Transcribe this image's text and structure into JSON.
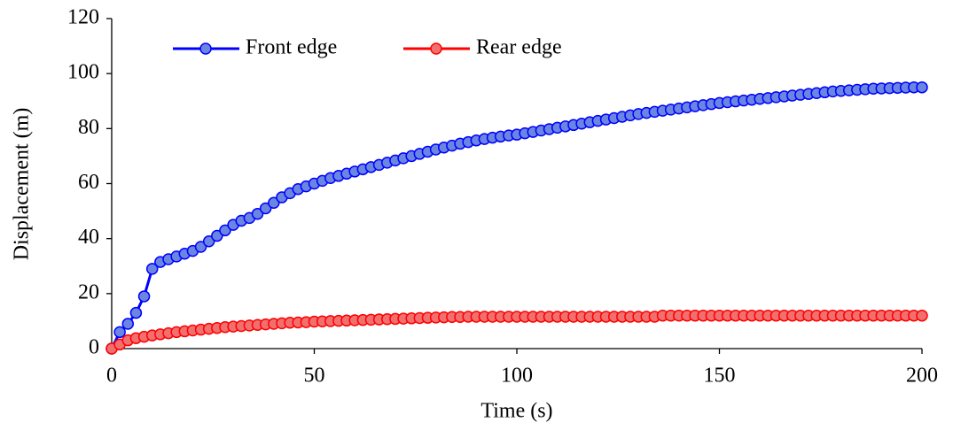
{
  "chart_data": {
    "type": "line",
    "xlabel": "Time (s)",
    "ylabel": "Displacement (m)",
    "xlim": [
      0,
      200
    ],
    "xticks": [
      0,
      50,
      100,
      150,
      200
    ],
    "ylim": [
      0,
      120
    ],
    "yticks": [
      0,
      20,
      40,
      60,
      80,
      100,
      120
    ],
    "legend": "top-left",
    "grid": false,
    "x": [
      0,
      2,
      4,
      6,
      8,
      10,
      12,
      14,
      16,
      18,
      20,
      22,
      24,
      26,
      28,
      30,
      32,
      34,
      36,
      38,
      40,
      42,
      44,
      46,
      48,
      50,
      52,
      54,
      56,
      58,
      60,
      62,
      64,
      66,
      68,
      70,
      72,
      74,
      76,
      78,
      80,
      82,
      84,
      86,
      88,
      90,
      92,
      94,
      96,
      98,
      100,
      102,
      104,
      106,
      108,
      110,
      112,
      114,
      116,
      118,
      120,
      122,
      124,
      126,
      128,
      130,
      132,
      134,
      136,
      138,
      140,
      142,
      144,
      146,
      148,
      150,
      152,
      154,
      156,
      158,
      160,
      162,
      164,
      166,
      168,
      170,
      172,
      174,
      176,
      178,
      180,
      182,
      184,
      186,
      188,
      190,
      192,
      194,
      196,
      198,
      200
    ],
    "series": [
      {
        "name": "Front edge",
        "color": "#0000ff",
        "marker_color": "#6a86e0",
        "values": [
          0,
          6,
          9,
          13,
          19,
          29,
          31.5,
          32.5,
          33.5,
          34.5,
          35.5,
          37,
          39,
          41,
          43,
          45,
          46.5,
          47.5,
          49,
          51,
          53,
          55,
          56.5,
          58,
          59,
          60,
          61,
          62,
          62.8,
          63.6,
          64.4,
          65.2,
          66,
          66.8,
          67.6,
          68.4,
          69.2,
          70,
          70.8,
          71.6,
          72.4,
          73.1,
          73.8,
          74.5,
          75.1,
          75.7,
          76.2,
          76.7,
          77.1,
          77.5,
          77.8,
          78.3,
          78.8,
          79.3,
          79.8,
          80.3,
          80.8,
          81.3,
          81.8,
          82.3,
          82.8,
          83.3,
          83.8,
          84.3,
          84.8,
          85.3,
          85.7,
          86.1,
          86.5,
          86.9,
          87.3,
          87.7,
          88.1,
          88.5,
          88.9,
          89.3,
          89.6,
          89.9,
          90.2,
          90.5,
          90.8,
          91.1,
          91.4,
          91.7,
          92,
          92.3,
          92.6,
          92.9,
          93.2,
          93.5,
          93.7,
          93.9,
          94.1,
          94.3,
          94.5,
          94.6,
          94.7,
          94.8,
          94.9,
          95,
          95
        ]
      },
      {
        "name": "Rear edge",
        "color": "#ff0000",
        "marker_color": "#f07070",
        "values": [
          0,
          1.5,
          3,
          3.8,
          4.3,
          4.8,
          5.2,
          5.6,
          6,
          6.3,
          6.6,
          6.9,
          7.2,
          7.5,
          7.8,
          8,
          8.2,
          8.4,
          8.6,
          8.8,
          9,
          9.2,
          9.4,
          9.5,
          9.6,
          9.8,
          9.9,
          10,
          10.1,
          10.2,
          10.3,
          10.4,
          10.5,
          10.6,
          10.7,
          10.8,
          10.9,
          11,
          11.1,
          11.2,
          11.3,
          11.4,
          11.5,
          11.5,
          11.6,
          11.6,
          11.6,
          11.6,
          11.6,
          11.6,
          11.6,
          11.6,
          11.6,
          11.6,
          11.6,
          11.6,
          11.6,
          11.6,
          11.6,
          11.6,
          11.6,
          11.6,
          11.6,
          11.6,
          11.6,
          11.6,
          11.6,
          11.6,
          12,
          12,
          12,
          12,
          12,
          12,
          12,
          12,
          12,
          12,
          12,
          12,
          12,
          12,
          12,
          12,
          12,
          12,
          12,
          12,
          12,
          12,
          12,
          12,
          12,
          12,
          12,
          12,
          12,
          12,
          12,
          12,
          12
        ]
      }
    ]
  }
}
